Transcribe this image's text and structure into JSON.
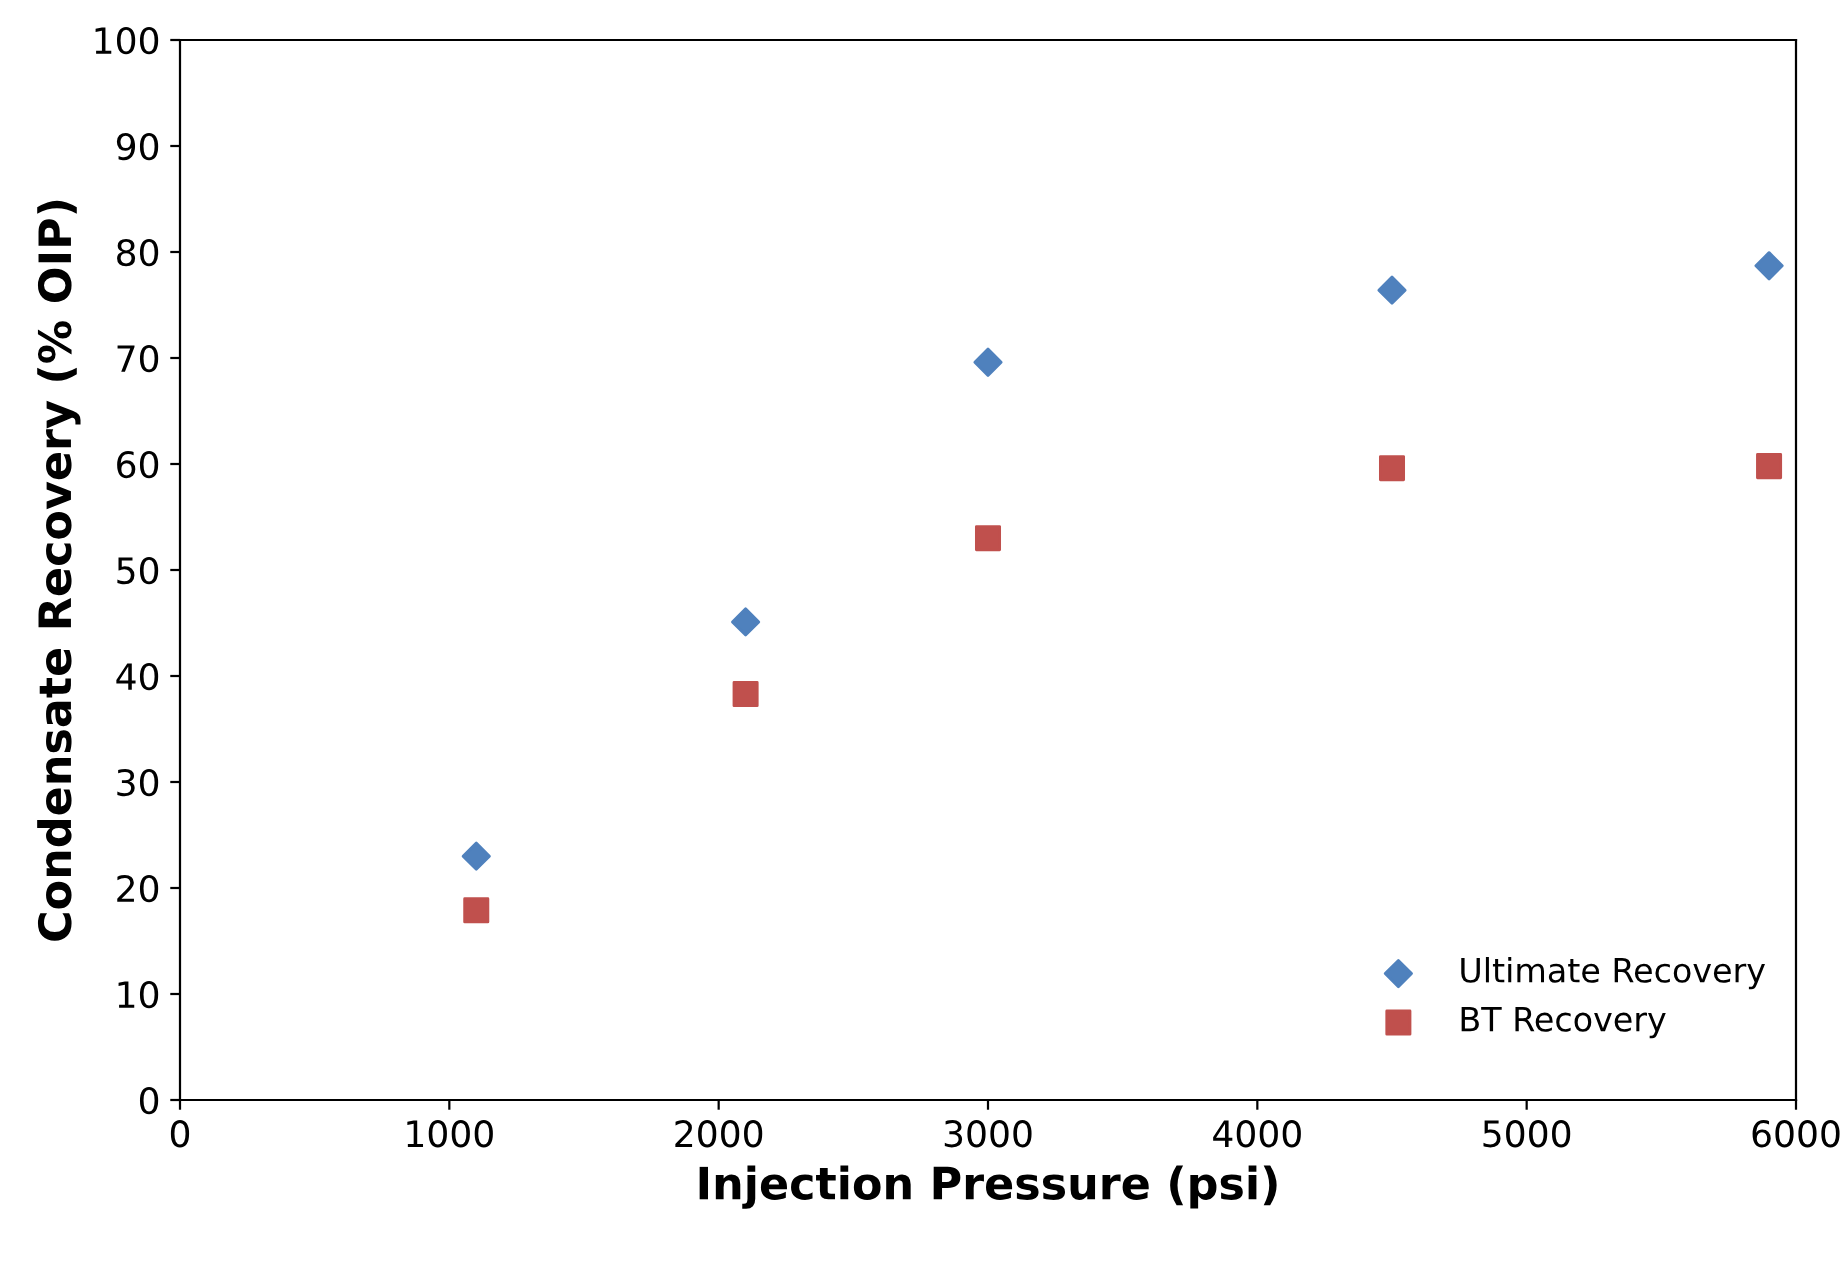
{
  "chart_data": {
    "type": "scatter",
    "xlabel": "Injection Pressure (psi)",
    "ylabel": "Condensate Recovery (% OIP)",
    "xlim": [
      0,
      6000
    ],
    "xticks": [
      0,
      1000,
      2000,
      3000,
      4000,
      5000,
      6000
    ],
    "ylim": [
      0,
      100
    ],
    "yticks": [
      0,
      10,
      20,
      30,
      40,
      50,
      60,
      70,
      80,
      90,
      100
    ],
    "grid": false,
    "legend": "bottom right",
    "series": [
      {
        "name": "Ultimate Recovery",
        "color": "#4f81bd",
        "marker": "diamond",
        "x": [
          1100,
          2100,
          3000,
          4500,
          5900
        ],
        "values": [
          23.0,
          45.1,
          69.6,
          76.4,
          78.7
        ]
      },
      {
        "name": "BT Recovery",
        "color": "#c0504d",
        "marker": "square",
        "x": [
          1100,
          2100,
          3000,
          4500,
          5900
        ],
        "values": [
          17.9,
          38.3,
          53.0,
          59.6,
          59.8
        ]
      }
    ]
  }
}
